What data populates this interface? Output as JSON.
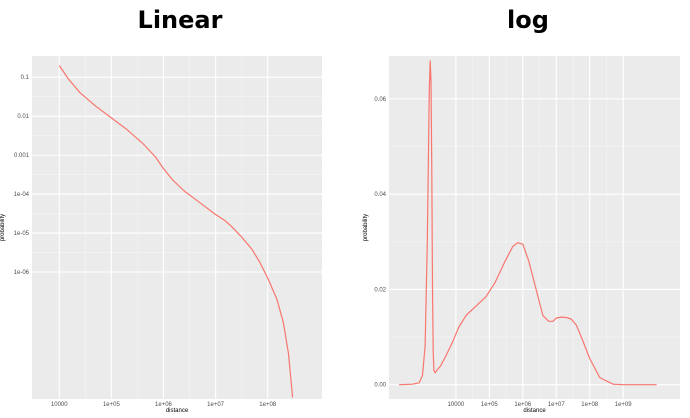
{
  "titles": {
    "left": "Linear",
    "right": "log"
  },
  "chart_data": [
    {
      "type": "line",
      "title": "Linear",
      "xlabel": "distance",
      "ylabel": "probability",
      "x_scale": "log10",
      "y_scale": "log10",
      "xlim": [
        3000,
        1100000000
      ],
      "ylim": [
        5.5e-10,
        0.35
      ],
      "grid": true,
      "x_ticks": [
        {
          "value": 10000,
          "label": "10000"
        },
        {
          "value": 100000,
          "label": "1e+05"
        },
        {
          "value": 1000000,
          "label": "1e+06"
        },
        {
          "value": 10000000,
          "label": "1e+07"
        },
        {
          "value": 100000000,
          "label": "1e+08"
        }
      ],
      "y_ticks": [
        {
          "value": 0.1,
          "label": "0.1"
        },
        {
          "value": 0.01,
          "label": "0.01"
        },
        {
          "value": 0.001,
          "label": "0.001"
        },
        {
          "value": 0.0001,
          "label": "1e-04"
        },
        {
          "value": 1e-05,
          "label": "1e-05"
        },
        {
          "value": 1e-06,
          "label": "1e-06"
        }
      ],
      "series": [
        {
          "color": "#f8766d",
          "x": [
            10000,
            15000,
            25000,
            50000,
            100000,
            200000,
            400000,
            700000,
            1000000,
            1500000,
            2500000,
            5000000,
            10000000,
            15000000,
            20000000,
            30000000,
            50000000,
            70000000,
            100000000,
            150000000,
            200000000,
            250000000,
            300000000
          ],
          "y": [
            0.2,
            0.09,
            0.04,
            0.018,
            0.009,
            0.0045,
            0.002,
            0.0009,
            0.00045,
            0.00023,
            0.00012,
            6e-05,
            3e-05,
            2.1e-05,
            1.5e-05,
            8.5e-06,
            3.8e-06,
            1.8e-06,
            7e-07,
            2e-07,
            5e-08,
            8e-09,
            6e-10
          ]
        }
      ]
    },
    {
      "type": "line",
      "title": "log",
      "xlabel": "distance",
      "ylabel": "probability",
      "x_scale": "log10",
      "xlim": [
        100,
        50000000000
      ],
      "ylim": [
        -0.003,
        0.069
      ],
      "grid": true,
      "x_ticks": [
        {
          "value": 10000,
          "label": "10000"
        },
        {
          "value": 100000,
          "label": "1e+05"
        },
        {
          "value": 1000000,
          "label": "1e+06"
        },
        {
          "value": 10000000,
          "label": "1e+07"
        },
        {
          "value": 100000000,
          "label": "1e+08"
        },
        {
          "value": 1000000000,
          "label": "1e+09"
        }
      ],
      "y_ticks": [
        {
          "value": 0.0,
          "label": "0.00"
        },
        {
          "value": 0.02,
          "label": "0.02"
        },
        {
          "value": 0.04,
          "label": "0.04"
        },
        {
          "value": 0.06,
          "label": "0.06"
        }
      ],
      "series": [
        {
          "color": "#f8766d",
          "x": [
            200,
            500,
            800,
            1000,
            1200,
            1400,
            1600,
            1700,
            1800,
            1900,
            2000,
            2100,
            2200,
            2400,
            2700,
            3500,
            5000,
            8000,
            12000,
            20000,
            40000,
            80000,
            150000,
            300000,
            500000,
            700000,
            1000000,
            1500000,
            2500000,
            4000000,
            6000000,
            8000000,
            10000000,
            14000000,
            20000000,
            28000000,
            40000000,
            60000000,
            100000000,
            200000000,
            500000000,
            1000000000,
            3000000000,
            10000000000
          ],
          "y": [
            0.0,
            0.0001,
            0.0004,
            0.002,
            0.008,
            0.03,
            0.062,
            0.068,
            0.064,
            0.045,
            0.02,
            0.007,
            0.003,
            0.0025,
            0.003,
            0.004,
            0.006,
            0.009,
            0.012,
            0.0145,
            0.0165,
            0.0185,
            0.0215,
            0.026,
            0.029,
            0.0298,
            0.0295,
            0.026,
            0.02,
            0.0145,
            0.0133,
            0.0133,
            0.014,
            0.0142,
            0.0141,
            0.0138,
            0.0125,
            0.0095,
            0.0055,
            0.0015,
            0.0001,
            0.0,
            0.0,
            0.0
          ]
        }
      ]
    }
  ]
}
